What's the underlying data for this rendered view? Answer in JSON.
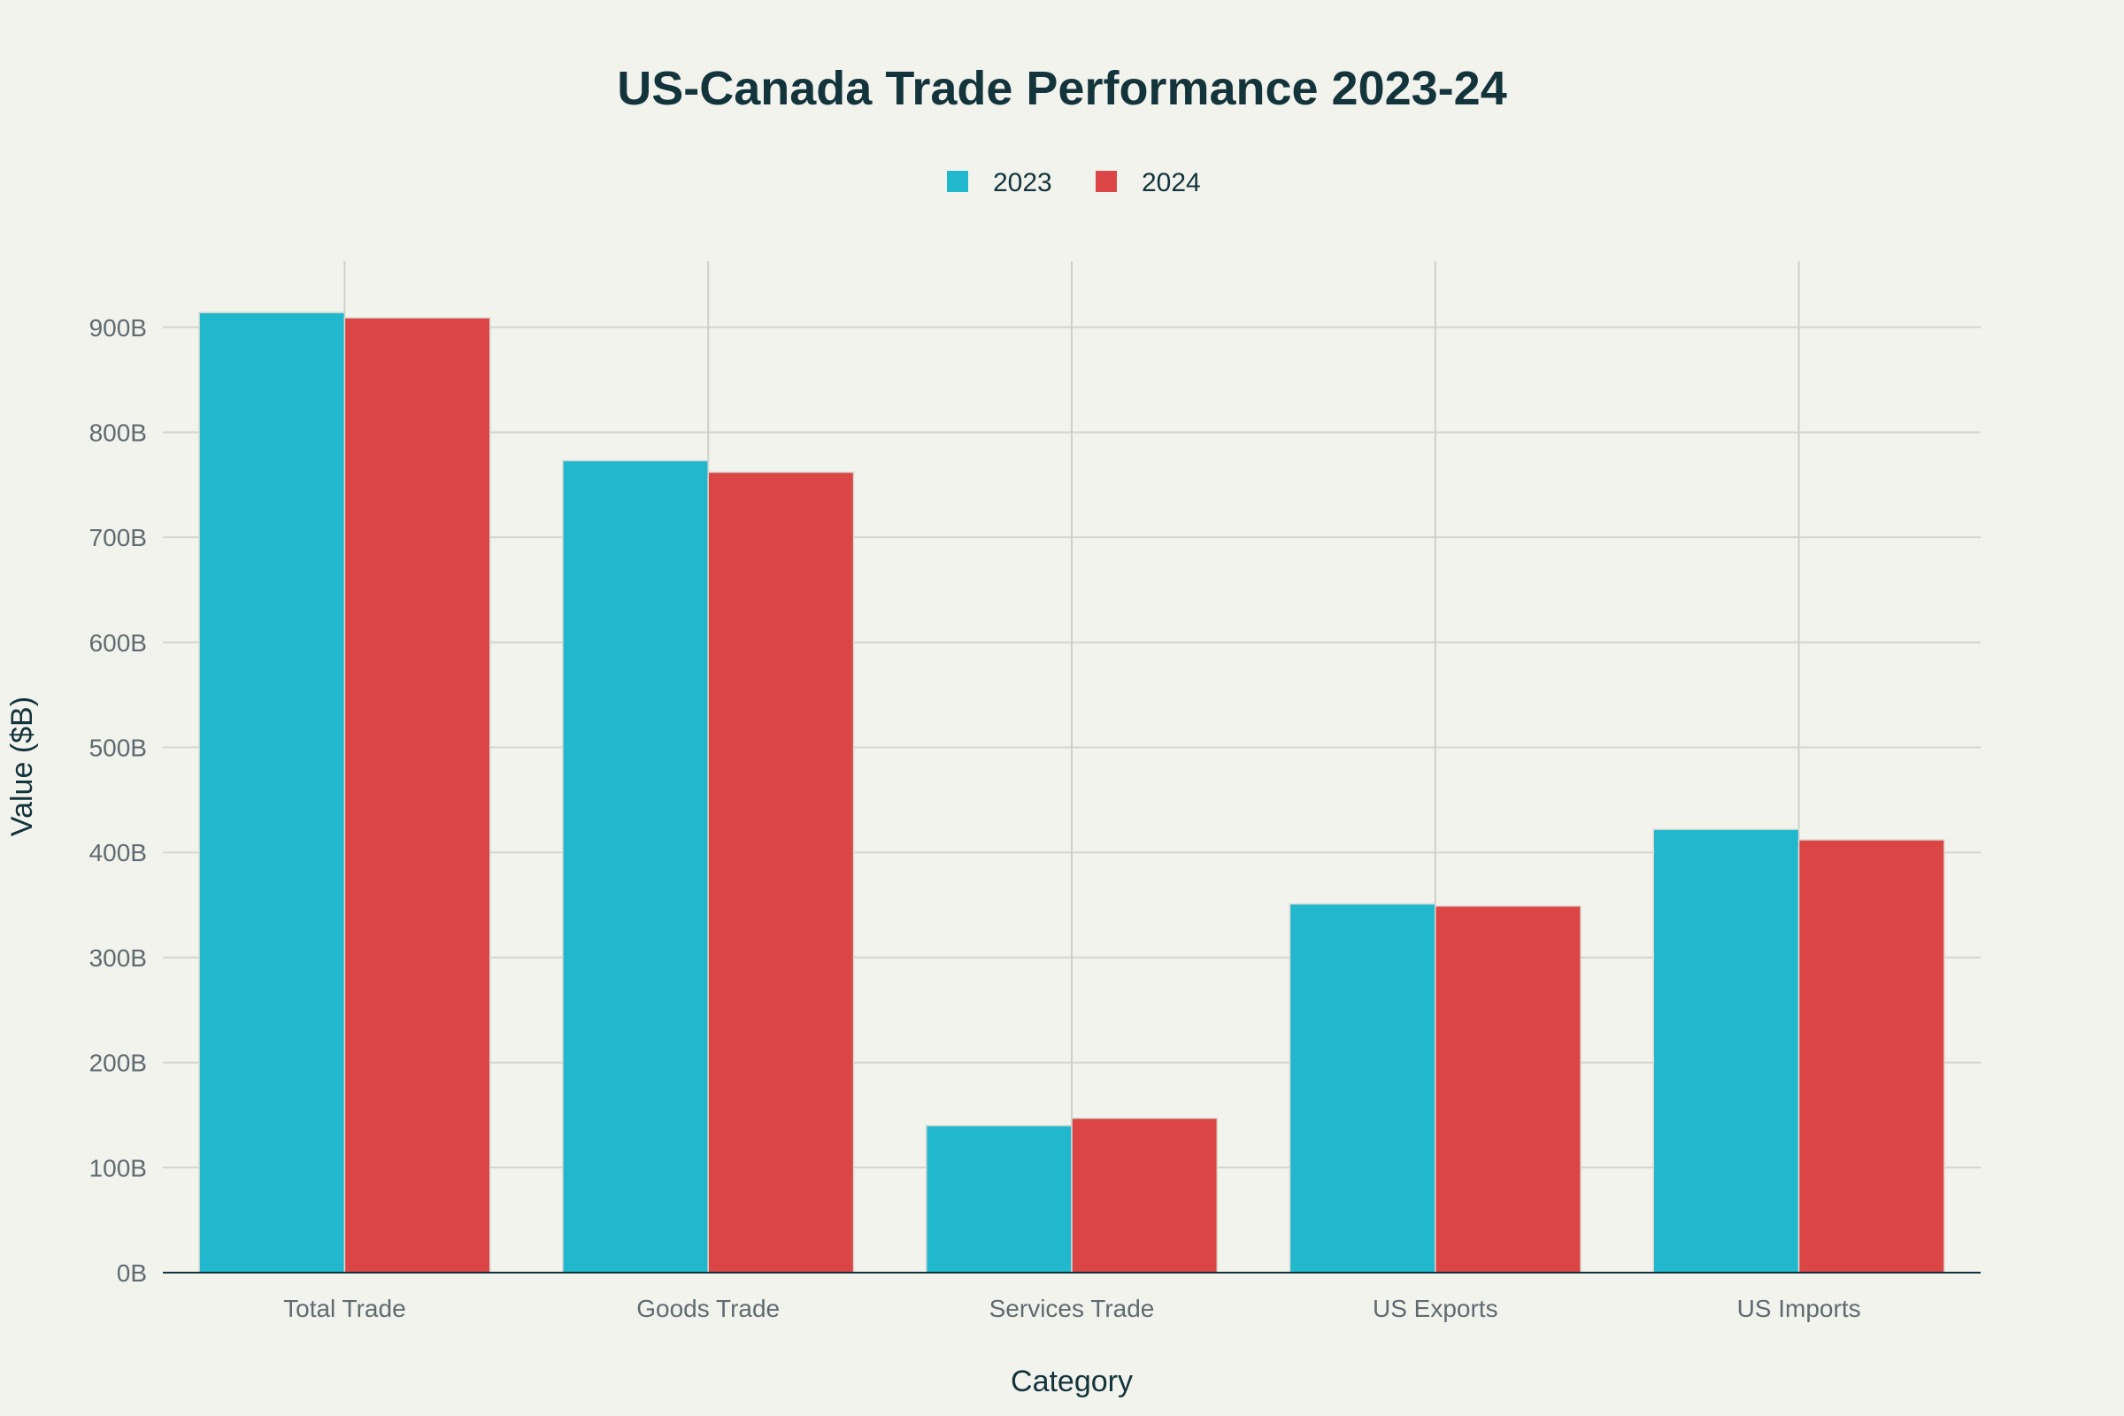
{
  "chart_data": {
    "type": "bar",
    "title": "US-Canada Trade Performance 2023-24",
    "xlabel": "Category",
    "ylabel": "Value ($B)",
    "categories": [
      "Total Trade",
      "Goods Trade",
      "Services Trade",
      "US Exports",
      "US Imports"
    ],
    "series": [
      {
        "name": "2023",
        "color": "#21b8cd",
        "values": [
          914,
          773,
          140,
          351,
          422
        ]
      },
      {
        "name": "2024",
        "color": "#db4545",
        "values": [
          909,
          762,
          147,
          349,
          412
        ]
      }
    ],
    "ylim": [
      0,
      963
    ],
    "yticks": [
      0,
      100,
      200,
      300,
      400,
      500,
      600,
      700,
      800,
      900
    ],
    "ytick_labels": [
      "0B",
      "100B",
      "200B",
      "300B",
      "400B",
      "500B",
      "600B",
      "700B",
      "800B",
      "900B"
    ],
    "grid": true,
    "legend_position": "top-center",
    "background": "#f3f3ee"
  }
}
